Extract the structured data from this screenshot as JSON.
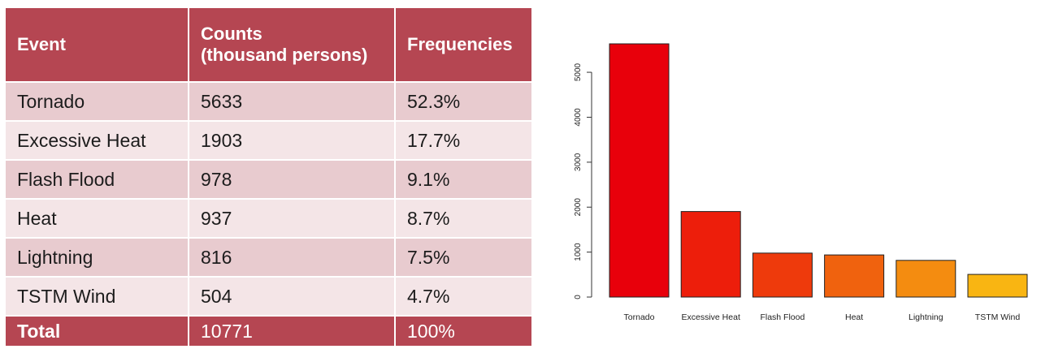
{
  "table": {
    "headers": [
      "Event",
      "Counts\n(thousand persons)",
      "Frequencies"
    ],
    "rows": [
      [
        "Tornado",
        "5633",
        "52.3%"
      ],
      [
        "Excessive Heat",
        "1903",
        "17.7%"
      ],
      [
        "Flash Flood",
        "978",
        "9.1%"
      ],
      [
        "Heat",
        "937",
        "8.7%"
      ],
      [
        "Lightning",
        "816",
        "7.5%"
      ],
      [
        "TSTM Wind",
        "504",
        "4.7%"
      ]
    ],
    "total": [
      "Total",
      "10771",
      "100%"
    ]
  },
  "chart_data": {
    "type": "bar",
    "categories": [
      "Tornado",
      "Excessive Heat",
      "Flash Flood",
      "Heat",
      "Lightning",
      "TSTM Wind"
    ],
    "values": [
      5633,
      1903,
      978,
      937,
      816,
      504
    ],
    "colors": [
      "#e8000b",
      "#ed1e0b",
      "#ee3a0c",
      "#f0620e",
      "#f48c10",
      "#f9b512"
    ],
    "yticks": [
      0,
      1000,
      2000,
      3000,
      4000,
      5000
    ],
    "ylim": [
      0,
      5633
    ],
    "title": "",
    "xlabel": "",
    "ylabel": ""
  }
}
